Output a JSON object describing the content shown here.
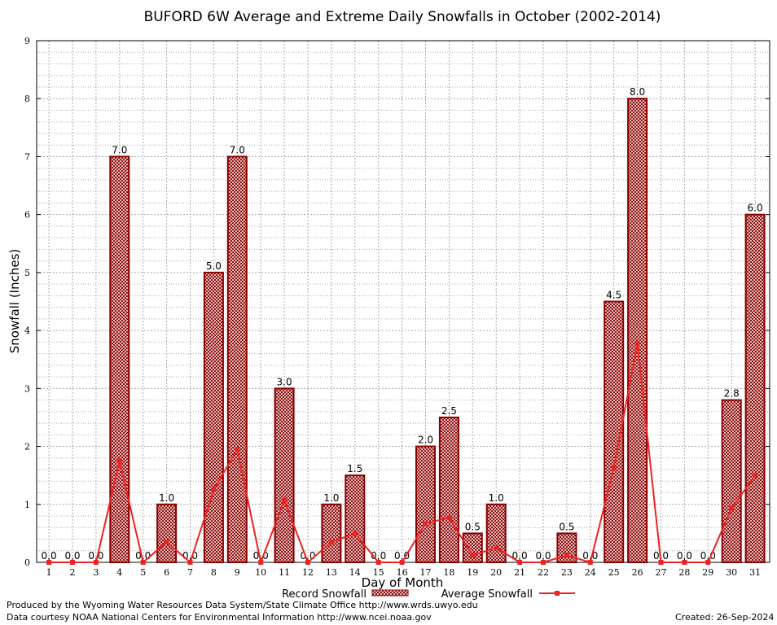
{
  "chart_data": {
    "type": "bar",
    "title": "BUFORD 6W Average and Extreme Daily Snowfalls in October (2002-2014)",
    "xlabel": "Day of Month",
    "ylabel": "Snowfall (Inches)",
    "ylim": [
      0,
      9
    ],
    "yticks": [
      "0",
      "1",
      "2",
      "3",
      "4",
      "5",
      "6",
      "7",
      "8",
      "9"
    ],
    "grid": true,
    "legend_position": "bottom",
    "categories": [
      "1",
      "2",
      "3",
      "4",
      "5",
      "6",
      "7",
      "8",
      "9",
      "10",
      "11",
      "12",
      "13",
      "14",
      "15",
      "16",
      "17",
      "18",
      "19",
      "20",
      "21",
      "22",
      "23",
      "24",
      "25",
      "26",
      "27",
      "28",
      "29",
      "30",
      "31"
    ],
    "series": [
      {
        "name": "Record Snowfall",
        "kind": "bar",
        "color": "#8b0000",
        "values": [
          0,
          0,
          0,
          7.0,
          0,
          1.0,
          0,
          5.0,
          7.0,
          0,
          3.0,
          0,
          1.0,
          1.5,
          0,
          0,
          2.0,
          2.5,
          0.5,
          1.0,
          0,
          0,
          0.5,
          0,
          4.5,
          8.0,
          0,
          0,
          0,
          2.8,
          6.0
        ],
        "labels": [
          "0.0",
          "0.0",
          "0.0",
          "7.0",
          "0.0",
          "1.0",
          "0.0",
          "5.0",
          "7.0",
          "0.0",
          "3.0",
          "0.0",
          "1.0",
          "1.5",
          "0.0",
          "0.0",
          "2.0",
          "2.5",
          "0.5",
          "1.0",
          "0.0",
          "0.0",
          "0.5",
          "0.0",
          "4.5",
          "8.0",
          "0.0",
          "0.0",
          "0.0",
          "2.8",
          "6.0"
        ]
      },
      {
        "name": "Average Snowfall",
        "kind": "line",
        "color": "#ee2222",
        "values": [
          0,
          0,
          0,
          1.75,
          0,
          0.35,
          0,
          1.25,
          1.95,
          0,
          1.07,
          0,
          0.35,
          0.5,
          0,
          0,
          0.67,
          0.77,
          0.12,
          0.25,
          0,
          0,
          0.12,
          0,
          1.63,
          3.77,
          0,
          0,
          0,
          0.93,
          1.5
        ]
      }
    ]
  },
  "footer": {
    "producer": "Produced by the Wyoming Water Resources Data System/State Climate Office http://www.wrds.uwyo.edu",
    "courtesy": "Data courtesy NOAA National Centers for Environmental Information http://www.ncei.noaa.gov",
    "created": "Created:  26-Sep-2024"
  }
}
